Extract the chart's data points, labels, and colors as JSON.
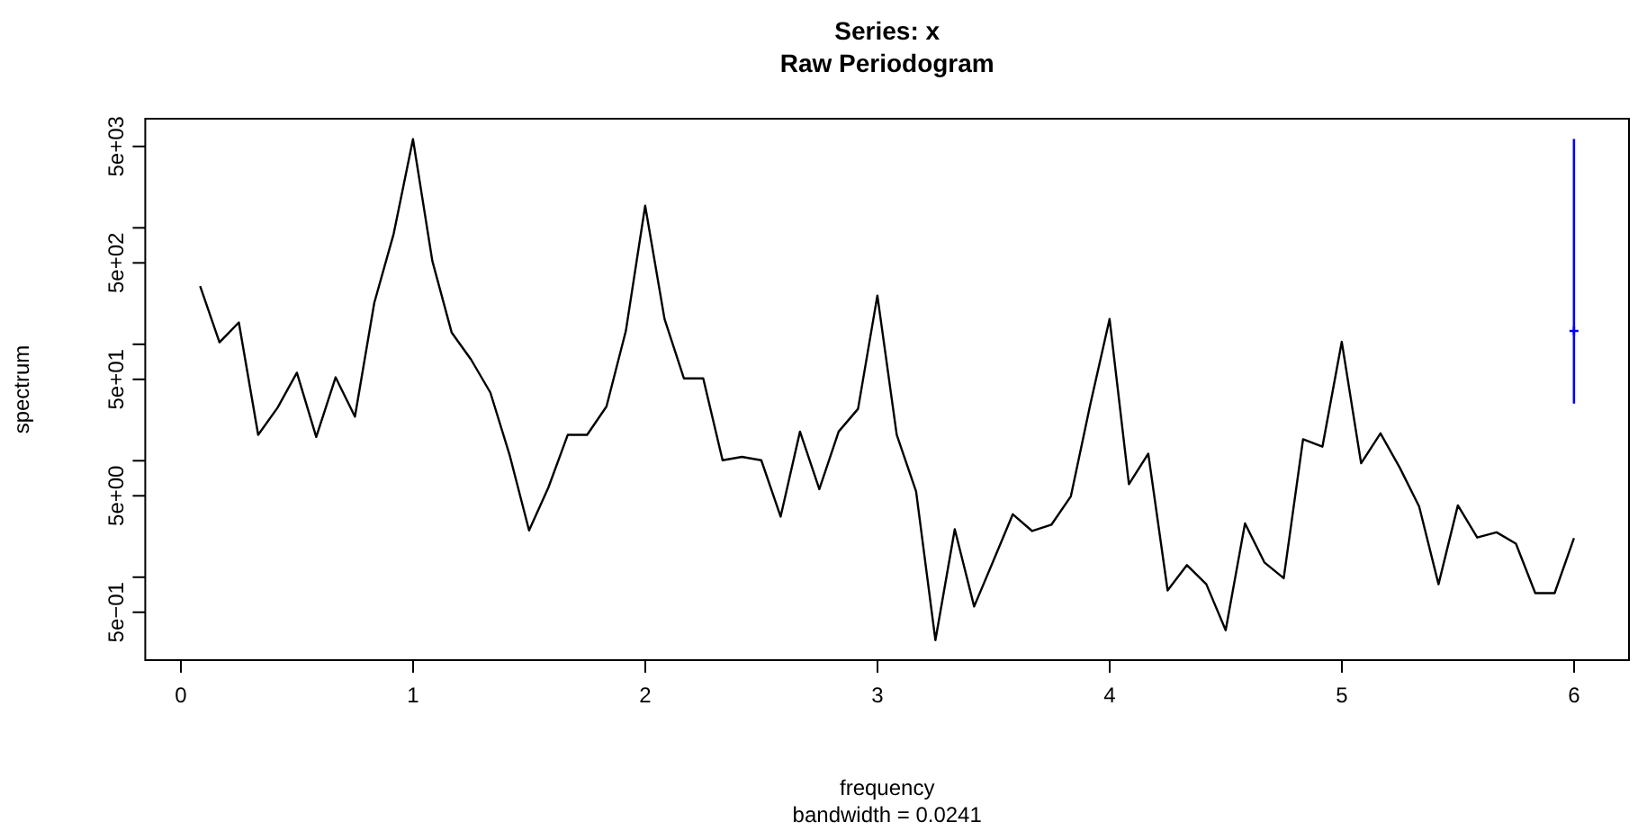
{
  "chart_data": {
    "type": "line",
    "title": "Series: x",
    "subtitle": "Raw Periodogram",
    "xlabel": "frequency",
    "ylabel": "spectrum",
    "annotations": [
      "bandwidth = 0.0241"
    ],
    "log": "y",
    "grid": false,
    "legend": false,
    "marker": "none",
    "line_style": "solid",
    "xlim": [
      -0.153,
      6.237
    ],
    "xticks": [
      0,
      1,
      2,
      3,
      4,
      5,
      6
    ],
    "ylim": [
      0.194,
      8650
    ],
    "yticks": [
      {
        "value": 0.5,
        "label": "5e−01"
      },
      {
        "value": 1,
        "label": null
      },
      {
        "value": 5,
        "label": "5e+00"
      },
      {
        "value": 10,
        "label": null
      },
      {
        "value": 50,
        "label": "5e+01"
      },
      {
        "value": 100,
        "label": null
      },
      {
        "value": 500,
        "label": "5e+02"
      },
      {
        "value": 1000,
        "label": null
      },
      {
        "value": 5000,
        "label": "5e+03"
      }
    ],
    "series": [
      {
        "color": "#000000",
        "x": [
          0.0833,
          0.1667,
          0.25,
          0.3333,
          0.4167,
          0.5,
          0.5833,
          0.6667,
          0.75,
          0.8333,
          0.9167,
          1,
          1.0833,
          1.1667,
          1.25,
          1.3333,
          1.4167,
          1.5,
          1.5833,
          1.6667,
          1.75,
          1.8333,
          1.9167,
          2,
          2.0833,
          2.1667,
          2.25,
          2.3333,
          2.4167,
          2.5,
          2.5833,
          2.6667,
          2.75,
          2.8333,
          2.9167,
          3,
          3.0833,
          3.1667,
          3.25,
          3.3333,
          3.4167,
          3.5,
          3.5833,
          3.6667,
          3.75,
          3.8333,
          3.9167,
          4,
          4.0833,
          4.1667,
          4.25,
          4.3333,
          4.4167,
          4.5,
          4.5833,
          4.6667,
          4.75,
          4.8333,
          4.9167,
          5,
          5.0833,
          5.1667,
          5.25,
          5.3333,
          5.4167,
          5.5,
          5.5833,
          5.6667,
          5.75,
          5.8333,
          5.9167,
          6
        ],
        "values": [
          316,
          104,
          154,
          16.7,
          28.5,
          57,
          16,
          52,
          23.9,
          227,
          887,
          5770,
          520,
          126,
          74,
          38.5,
          11.1,
          2.52,
          5.9,
          16.7,
          16.7,
          29.2,
          130,
          1549,
          165,
          51,
          51,
          10.1,
          10.8,
          10.1,
          3.31,
          17.8,
          5.7,
          17.8,
          27.9,
          262,
          16.7,
          5.45,
          0.288,
          2.58,
          0.56,
          1.39,
          3.47,
          2.49,
          2.83,
          4.95,
          30.3,
          165,
          6.3,
          11.5,
          0.77,
          1.27,
          0.87,
          0.35,
          2.9,
          1.34,
          0.98,
          15.3,
          13.2,
          105,
          9.5,
          17.2,
          8.7,
          4.04,
          0.87,
          4.14,
          2.19,
          2.43,
          1.94,
          0.73,
          0.73,
          2.16
        ]
      },
      {
        "type": "scatter",
        "color": "#0000ff",
        "marker": "cross",
        "x": [
          6
        ],
        "values": [
          130
        ],
        "errors": [
          [
            31,
            5800
          ]
        ]
      }
    ]
  }
}
